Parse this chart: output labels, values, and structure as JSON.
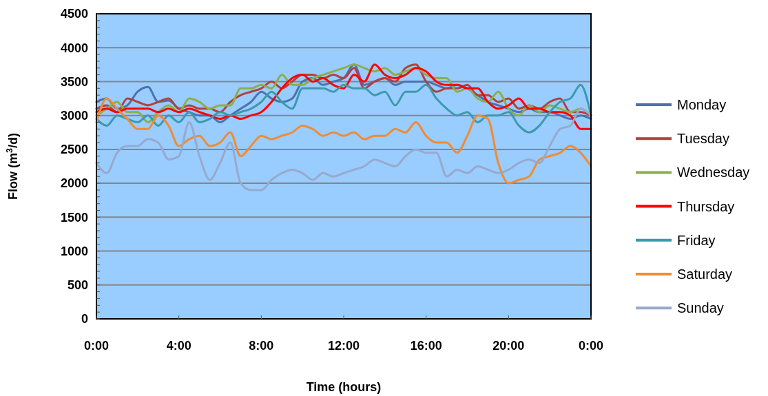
{
  "chart_data": {
    "type": "line",
    "xlabel": "Time (hours)",
    "ylabel": "Flow (m$^{3}$/d)",
    "x": [
      0,
      0.5,
      1,
      1.5,
      2,
      2.5,
      3,
      3.5,
      4,
      4.5,
      5,
      5.5,
      6,
      6.5,
      7,
      7.5,
      8,
      8.5,
      9,
      9.5,
      10,
      10.5,
      11,
      11.5,
      12,
      12.5,
      13,
      13.5,
      14,
      14.5,
      15,
      15.5,
      16,
      16.5,
      17,
      17.5,
      18,
      18.5,
      19,
      19.5,
      20,
      20.5,
      21,
      21.5,
      22,
      22.5,
      23,
      23.5,
      24
    ],
    "xlim": [
      0,
      24
    ],
    "xticks": [
      {
        "value": 0,
        "label": "0:00"
      },
      {
        "value": 4,
        "label": "4:00"
      },
      {
        "value": 8,
        "label": "8:00"
      },
      {
        "value": 12,
        "label": "12:00"
      },
      {
        "value": 16,
        "label": "16:00"
      },
      {
        "value": 20,
        "label": "20:00"
      },
      {
        "value": 24,
        "label": "0:00"
      }
    ],
    "ylim": [
      0,
      4500
    ],
    "yticks": [
      0,
      500,
      1000,
      1500,
      2000,
      2500,
      3000,
      3500,
      4000,
      4500
    ],
    "grid": "y",
    "legend": "right",
    "series": [
      {
        "name": "Monday",
        "color": "#4a72b0",
        "values": [
          3200,
          3250,
          3100,
          3150,
          3350,
          3420,
          3200,
          3220,
          3100,
          3050,
          3000,
          3000,
          2900,
          3000,
          3100,
          3200,
          3350,
          3250,
          3200,
          3250,
          3500,
          3550,
          3450,
          3500,
          3550,
          3750,
          3450,
          3500,
          3550,
          3450,
          3500,
          3500,
          3500,
          3450,
          3400,
          3450,
          3400,
          3300,
          3200,
          3150,
          3100,
          3050,
          3100,
          3050,
          3050,
          3000,
          2950,
          3000,
          2950
        ]
      },
      {
        "name": "Tuesday",
        "color": "#b0413e",
        "values": [
          3100,
          3150,
          3050,
          3250,
          3200,
          3150,
          3200,
          3250,
          3100,
          3150,
          3100,
          3100,
          3050,
          3200,
          3300,
          3350,
          3400,
          3500,
          3400,
          3500,
          3600,
          3600,
          3550,
          3600,
          3550,
          3700,
          3400,
          3500,
          3550,
          3500,
          3700,
          3750,
          3500,
          3350,
          3400,
          3400,
          3450,
          3300,
          3300,
          3200,
          3250,
          3100,
          3150,
          3100,
          3200,
          3250,
          3050,
          3050,
          3000
        ]
      },
      {
        "name": "Wednesday",
        "color": "#8cae4a",
        "values": [
          3000,
          3100,
          3200,
          3050,
          3050,
          2900,
          3050,
          3150,
          3050,
          3250,
          3200,
          3100,
          3150,
          3150,
          3400,
          3400,
          3450,
          3400,
          3600,
          3450,
          3450,
          3550,
          3600,
          3650,
          3700,
          3750,
          3700,
          3650,
          3700,
          3600,
          3650,
          3700,
          3600,
          3550,
          3550,
          3350,
          3400,
          3250,
          3200,
          3350,
          3100,
          3000,
          3150,
          3050,
          3150,
          3100,
          3050,
          3100,
          3000
        ]
      },
      {
        "name": "Thursday",
        "color": "#ff0000",
        "values": [
          3050,
          3100,
          3050,
          3100,
          3100,
          3100,
          3050,
          3100,
          3050,
          3100,
          3050,
          3000,
          2950,
          3000,
          2950,
          3000,
          3050,
          3200,
          3400,
          3550,
          3600,
          3500,
          3550,
          3450,
          3400,
          3600,
          3500,
          3750,
          3600,
          3550,
          3600,
          3700,
          3650,
          3500,
          3450,
          3450,
          3400,
          3400,
          3200,
          3100,
          3150,
          3250,
          3100,
          3100,
          3050,
          3050,
          3000,
          2800,
          2800
        ]
      },
      {
        "name": "Friday",
        "color": "#3c9aac",
        "values": [
          2950,
          2850,
          3000,
          2950,
          2900,
          3000,
          2850,
          3000,
          2900,
          3050,
          2900,
          2950,
          3050,
          3000,
          3050,
          3100,
          3200,
          3350,
          3200,
          3100,
          3400,
          3400,
          3400,
          3350,
          3450,
          3400,
          3400,
          3300,
          3350,
          3150,
          3350,
          3350,
          3450,
          3250,
          3100,
          3000,
          3050,
          2900,
          3000,
          3000,
          3050,
          2850,
          2750,
          2850,
          3050,
          3200,
          3250,
          3450,
          3000
        ]
      },
      {
        "name": "Saturday",
        "color": "#f08b32",
        "values": [
          2900,
          3250,
          3100,
          2950,
          2800,
          2800,
          3000,
          2850,
          2550,
          2650,
          2700,
          2550,
          2600,
          2750,
          2400,
          2550,
          2700,
          2650,
          2700,
          2750,
          2850,
          2800,
          2700,
          2750,
          2700,
          2750,
          2650,
          2700,
          2700,
          2800,
          2750,
          2900,
          2700,
          2600,
          2600,
          2450,
          2700,
          3000,
          2950,
          2300,
          2000,
          2050,
          2100,
          2350,
          2400,
          2450,
          2550,
          2450,
          2250
        ]
      },
      {
        "name": "Sunday",
        "color": "#98a9cc",
        "values": [
          2300,
          2150,
          2450,
          2550,
          2550,
          2650,
          2600,
          2350,
          2400,
          2900,
          2400,
          2050,
          2300,
          2600,
          2000,
          1900,
          1900,
          2050,
          2150,
          2200,
          2150,
          2050,
          2150,
          2100,
          2150,
          2200,
          2250,
          2350,
          2300,
          2250,
          2400,
          2500,
          2450,
          2450,
          2100,
          2200,
          2150,
          2250,
          2200,
          2150,
          2200,
          2300,
          2350,
          2300,
          2550,
          2800,
          2850,
          3100,
          3000
        ]
      }
    ]
  }
}
